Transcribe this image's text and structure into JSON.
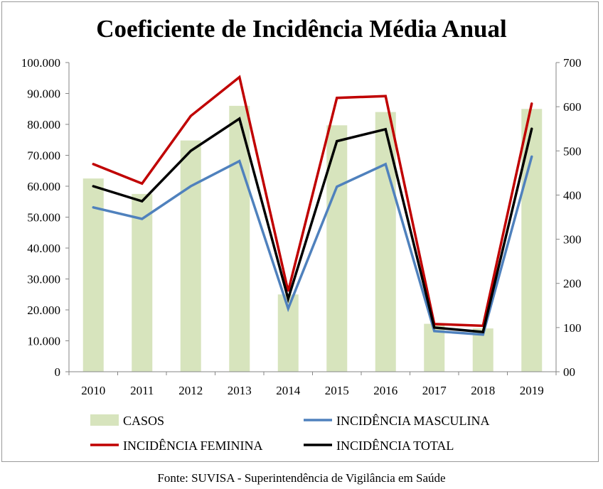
{
  "chart_data": {
    "type": "bar",
    "title": "Coeficiente de Incidência Média Anual",
    "categories": [
      "2010",
      "2011",
      "2012",
      "2013",
      "2014",
      "2015",
      "2016",
      "2017",
      "2018",
      "2019"
    ],
    "left_axis": {
      "ylim": [
        0,
        100000
      ],
      "ticks": [
        "0",
        "10.000",
        "20.000",
        "30.000",
        "40.000",
        "50.000",
        "60.000",
        "70.000",
        "80.000",
        "90.000",
        "100.000"
      ]
    },
    "right_axis": {
      "ylim": [
        0,
        700
      ],
      "ticks": [
        "00",
        "100",
        "200",
        "300",
        "400",
        "500",
        "600",
        "700"
      ]
    },
    "series": [
      {
        "name": "CASOS",
        "kind": "bar",
        "axis": "left",
        "color": "#d7e4bd",
        "values": [
          62500,
          57500,
          74800,
          86000,
          25000,
          79700,
          84000,
          15500,
          14000,
          85000
        ]
      },
      {
        "name": "INCIDÊNCIA MASCULINA",
        "kind": "line",
        "axis": "right",
        "color": "#4f81bd",
        "values": [
          372,
          346,
          420,
          477,
          143,
          419,
          470,
          92,
          84,
          487
        ]
      },
      {
        "name": "INCIDÊNCIA FEMININA",
        "kind": "line",
        "axis": "right",
        "color": "#c00000",
        "values": [
          470,
          426,
          579,
          667,
          182,
          620,
          624,
          108,
          104,
          607
        ]
      },
      {
        "name": "INCIDÊNCIA TOTAL",
        "kind": "line",
        "axis": "right",
        "color": "#000000",
        "values": [
          420,
          386,
          500,
          573,
          165,
          522,
          549,
          100,
          90,
          550
        ]
      }
    ],
    "legend_position": "bottom",
    "grid": false
  },
  "footer": "Fonte: SUVISA - Superintendência de Vigilância em Saúde"
}
